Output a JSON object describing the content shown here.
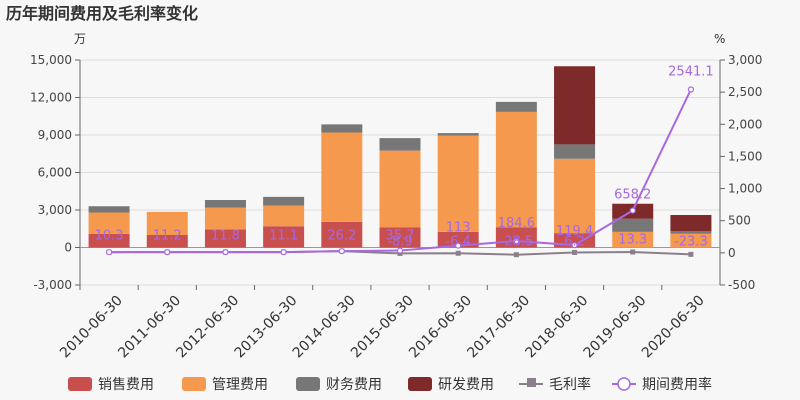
{
  "chart_data": {
    "type": "bar",
    "title": "历年期间费用及毛利率变化",
    "left_axis_unit": "万",
    "right_axis_unit": "%",
    "categories": [
      "2010-06-30",
      "2011-06-30",
      "2012-06-30",
      "2013-06-30",
      "2014-06-30",
      "2015-06-30",
      "2016-06-30",
      "2017-06-30",
      "2018-06-30",
      "2019-06-30",
      "2020-06-30"
    ],
    "left_ylim": [
      -3000,
      15000
    ],
    "left_yticks": [
      "-3,000",
      "0",
      "3,000",
      "6,000",
      "9,000",
      "12,000",
      "15,000"
    ],
    "right_ylim": [
      -500,
      3000
    ],
    "right_yticks": [
      "-500",
      "0",
      "500",
      "1,000",
      "1,500",
      "2,000",
      "2,500",
      "3,000"
    ],
    "series": [
      {
        "name": "销售费用",
        "kind": "bar",
        "color": "#c94f4f",
        "values": [
          1100,
          1000,
          1450,
          1700,
          2050,
          1600,
          1250,
          1600,
          1150,
          0,
          0
        ]
      },
      {
        "name": "管理费用",
        "kind": "bar",
        "color": "#f5994e",
        "values": [
          1700,
          1850,
          1750,
          1650,
          7150,
          6150,
          7700,
          9250,
          5950,
          1250,
          1100
        ]
      },
      {
        "name": "财务费用",
        "kind": "bar",
        "color": "#777777",
        "values": [
          500,
          0,
          600,
          700,
          650,
          1000,
          200,
          800,
          1150,
          1050,
          200
        ]
      },
      {
        "name": "研发费用",
        "kind": "bar",
        "color": "#7e2a2a",
        "values": [
          0,
          0,
          0,
          0,
          0,
          0,
          0,
          0,
          6250,
          1200,
          1300
        ]
      },
      {
        "name": "毛利率",
        "kind": "line",
        "color": "#8c7f8c",
        "values": [
          10.3,
          11.2,
          11.8,
          11.1,
          26.2,
          -8.9,
          -6.4,
          -28.5,
          6.2,
          13.3,
          -23.3
        ],
        "labels": [
          "10.3",
          "11.2",
          "11.8",
          "11.1",
          "26.2",
          "-8.9",
          "-6.4",
          "-28.5",
          "6.2",
          "13.3",
          "-23.3"
        ]
      },
      {
        "name": "期间费用率",
        "kind": "line",
        "color": "#a868e0",
        "values": [
          10.3,
          11.2,
          11.8,
          11.1,
          26.2,
          35.7,
          113,
          184.6,
          119.4,
          658.2,
          2541.1
        ],
        "labels": [
          "10.3",
          "11.2",
          "11.8",
          "11.1",
          "26.2",
          "35.7",
          "113",
          "184.6",
          "119.4",
          "658.2",
          "2541.1"
        ]
      }
    ],
    "grid": true,
    "legend_position": "bottom"
  }
}
